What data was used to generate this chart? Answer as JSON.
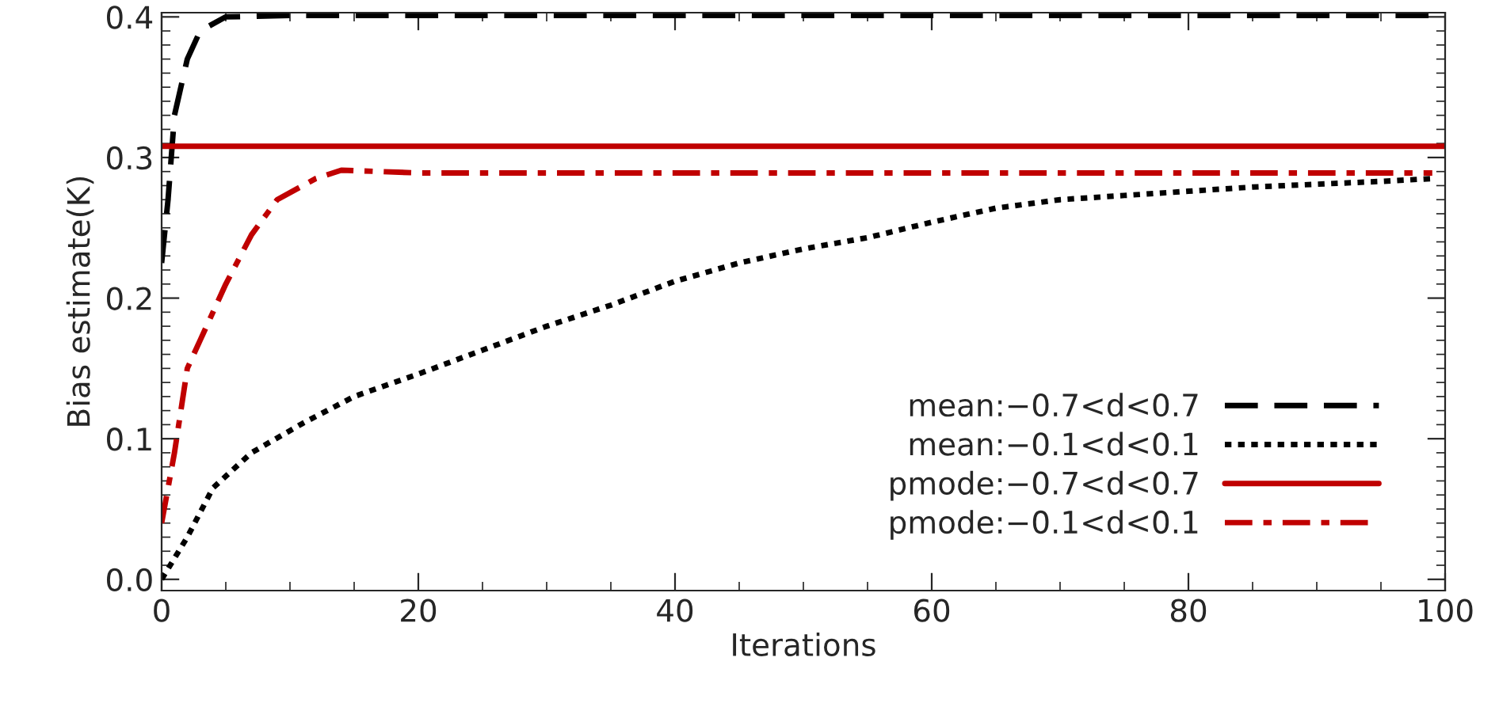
{
  "chart_data": {
    "type": "line",
    "xlabel": "Iterations",
    "ylabel": "Bias estimate(K)",
    "xlim": [
      0,
      100
    ],
    "xticks": [
      0,
      20,
      40,
      60,
      80,
      100
    ],
    "ylim": [
      -0.008,
      0.403
    ],
    "yticks": [
      {
        "value": 0,
        "label": "0.0"
      },
      {
        "value": 0.1,
        "label": "0.1"
      },
      {
        "value": 0.2,
        "label": "0.2"
      },
      {
        "value": 0.3,
        "label": "0.3"
      },
      {
        "value": 0.4,
        "label": "0.4"
      }
    ],
    "grid": false,
    "legend": "bottom right",
    "series": [
      {
        "name": "mean:−0.7<d<0.7",
        "color": "#000000",
        "line_style": "dashed",
        "x": [
          0,
          0.5,
          1,
          2,
          3,
          5,
          10,
          20,
          40,
          60,
          80,
          100
        ],
        "values": [
          0.225,
          0.27,
          0.33,
          0.37,
          0.39,
          0.4,
          0.401,
          0.401,
          0.401,
          0.401,
          0.401,
          0.401
        ]
      },
      {
        "name": "mean:−0.1<d<0.1",
        "color": "#000000",
        "line_style": "dotted",
        "x": [
          0,
          2,
          4,
          7,
          11,
          15,
          20,
          25,
          30,
          35,
          40,
          45,
          50,
          55,
          60,
          65,
          70,
          75,
          80,
          85,
          90,
          95,
          99
        ],
        "values": [
          0.0,
          0.03,
          0.065,
          0.09,
          0.111,
          0.13,
          0.146,
          0.163,
          0.18,
          0.195,
          0.212,
          0.225,
          0.235,
          0.243,
          0.254,
          0.264,
          0.27,
          0.273,
          0.276,
          0.279,
          0.281,
          0.283,
          0.285
        ]
      },
      {
        "name": "pmode:−0.7<d<0.7",
        "color": "#c00000",
        "line_style": "solid",
        "x": [
          0,
          100
        ],
        "values": [
          0.308,
          0.308
        ]
      },
      {
        "name": "pmode:−0.1<d<0.1",
        "color": "#c00000",
        "line_style": "dashdot",
        "x": [
          0,
          1,
          2,
          3,
          5,
          7,
          9,
          12,
          14,
          20,
          40,
          60,
          80,
          99
        ],
        "values": [
          0.04,
          0.09,
          0.15,
          0.17,
          0.21,
          0.245,
          0.27,
          0.285,
          0.291,
          0.289,
          0.289,
          0.289,
          0.289,
          0.289
        ]
      }
    ]
  }
}
